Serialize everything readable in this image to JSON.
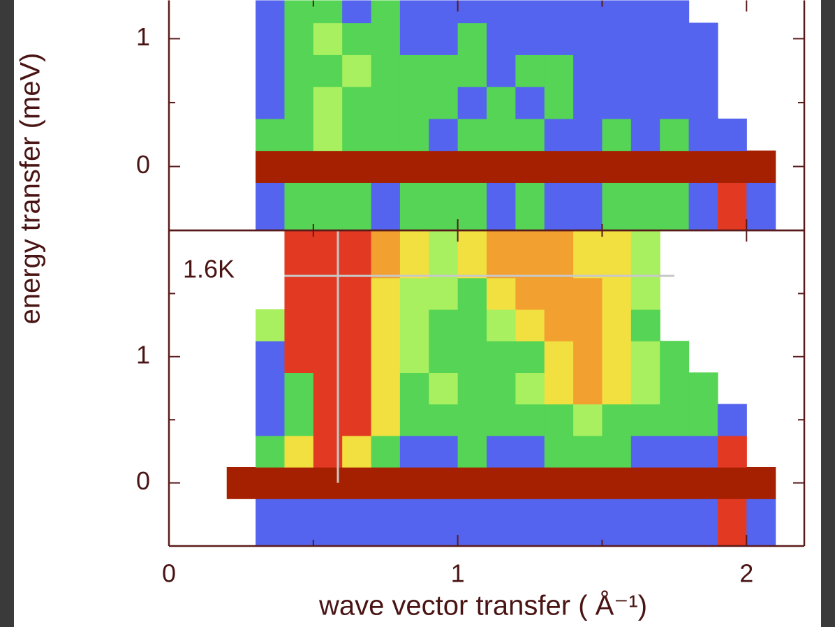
{
  "chart_data": [
    {
      "type": "heatmap",
      "ylabel": "energy transfer (meV)",
      "xlim": [
        0,
        2.2
      ],
      "ylim": [
        -0.5,
        1.3
      ],
      "yticks": [
        0,
        1
      ],
      "yminor": [
        -0.5,
        0.5
      ],
      "colormap": [
        "#5464ee",
        "#55d455",
        "#a8f060",
        "#f2e040",
        "#f2a030",
        "#e23a22",
        "#a52000"
      ],
      "x_edges": [
        0.2,
        0.3,
        0.4,
        0.5,
        0.6,
        0.7,
        0.8,
        0.9,
        1.0,
        1.1,
        1.2,
        1.3,
        1.4,
        1.5,
        1.6,
        1.7,
        1.8,
        1.9,
        2.0,
        2.1
      ],
      "y_edges": [
        -0.5,
        -0.125,
        0.125,
        0.375,
        0.625,
        0.875,
        1.125,
        1.3
      ],
      "z": [
        [
          null,
          0,
          1,
          1,
          1,
          0,
          1,
          1,
          1,
          0,
          1,
          0,
          0,
          1,
          1,
          1,
          0,
          5,
          0
        ],
        [
          null,
          6,
          6,
          6,
          6,
          6,
          6,
          6,
          6,
          6,
          6,
          6,
          6,
          6,
          6,
          6,
          6,
          6,
          6
        ],
        [
          null,
          1,
          1,
          2,
          1,
          1,
          1,
          0,
          1,
          1,
          1,
          0,
          0,
          1,
          0,
          1,
          0,
          0,
          null
        ],
        [
          null,
          0,
          1,
          2,
          1,
          1,
          1,
          1,
          0,
          1,
          0,
          1,
          0,
          0,
          0,
          0,
          0,
          null,
          null
        ],
        [
          null,
          0,
          1,
          1,
          2,
          1,
          1,
          1,
          1,
          0,
          1,
          1,
          0,
          0,
          0,
          0,
          0,
          null,
          null
        ],
        [
          null,
          0,
          1,
          2,
          1,
          1,
          0,
          0,
          1,
          0,
          0,
          0,
          0,
          0,
          0,
          0,
          0,
          null,
          null
        ],
        [
          null,
          0,
          1,
          1,
          0,
          1,
          0,
          0,
          0,
          0,
          0,
          0,
          0,
          0,
          0,
          0,
          null,
          null,
          null
        ]
      ]
    },
    {
      "type": "heatmap",
      "xlabel": "wave vector transfer ( Å⁻¹)",
      "annotation": "1.6K",
      "xlim": [
        0,
        2.2
      ],
      "ylim": [
        -0.5,
        2.0
      ],
      "xticks": [
        0,
        1,
        2
      ],
      "xminor": [
        0.5,
        1.5
      ],
      "yticks": [
        0,
        1
      ],
      "yminor": [
        -0.5,
        0.5,
        1.5
      ],
      "guides": [
        {
          "x": [
            0.585,
            0.585
          ],
          "y": [
            0,
            2.0
          ]
        },
        {
          "x": [
            0.4,
            1.75
          ],
          "y": [
            1.64,
            1.64
          ]
        }
      ],
      "guide_color": "#c8c8c8",
      "colormap": [
        "#5464ee",
        "#55d455",
        "#a8f060",
        "#f2e040",
        "#f2a030",
        "#e23a22",
        "#a52000"
      ],
      "x_edges": [
        0.2,
        0.3,
        0.4,
        0.5,
        0.6,
        0.7,
        0.8,
        0.9,
        1.0,
        1.1,
        1.2,
        1.3,
        1.4,
        1.5,
        1.6,
        1.7,
        1.8,
        1.9,
        2.0,
        2.1
      ],
      "y_edges": [
        -0.5,
        -0.125,
        0.125,
        0.375,
        0.625,
        0.875,
        1.125,
        1.375,
        1.625,
        2.0
      ],
      "z": [
        [
          null,
          0,
          0,
          0,
          0,
          0,
          0,
          0,
          0,
          0,
          0,
          0,
          0,
          0,
          0,
          0,
          0,
          5,
          0
        ],
        [
          6,
          6,
          6,
          6,
          6,
          6,
          6,
          6,
          6,
          6,
          6,
          6,
          6,
          6,
          6,
          6,
          6,
          6,
          6
        ],
        [
          null,
          1,
          3,
          5,
          3,
          1,
          0,
          0,
          1,
          0,
          0,
          1,
          1,
          1,
          0,
          0,
          0,
          5,
          null
        ],
        [
          null,
          0,
          1,
          5,
          5,
          3,
          1,
          1,
          1,
          1,
          1,
          1,
          2,
          1,
          1,
          1,
          1,
          0,
          null
        ],
        [
          null,
          0,
          1,
          5,
          5,
          3,
          1,
          2,
          1,
          1,
          2,
          3,
          4,
          3,
          2,
          1,
          1,
          null,
          null
        ],
        [
          null,
          0,
          5,
          5,
          5,
          3,
          2,
          1,
          1,
          1,
          1,
          3,
          4,
          3,
          2,
          1,
          null,
          null,
          null
        ],
        [
          null,
          2,
          5,
          5,
          5,
          3,
          2,
          1,
          1,
          2,
          3,
          4,
          4,
          3,
          1,
          null,
          null,
          null,
          null
        ],
        [
          null,
          null,
          5,
          5,
          5,
          3,
          2,
          2,
          1,
          3,
          4,
          4,
          4,
          3,
          2,
          null,
          null,
          null,
          null
        ],
        [
          null,
          null,
          5,
          5,
          5,
          4,
          3,
          2,
          3,
          4,
          4,
          4,
          3,
          3,
          2,
          null,
          null,
          null,
          null
        ]
      ]
    }
  ]
}
